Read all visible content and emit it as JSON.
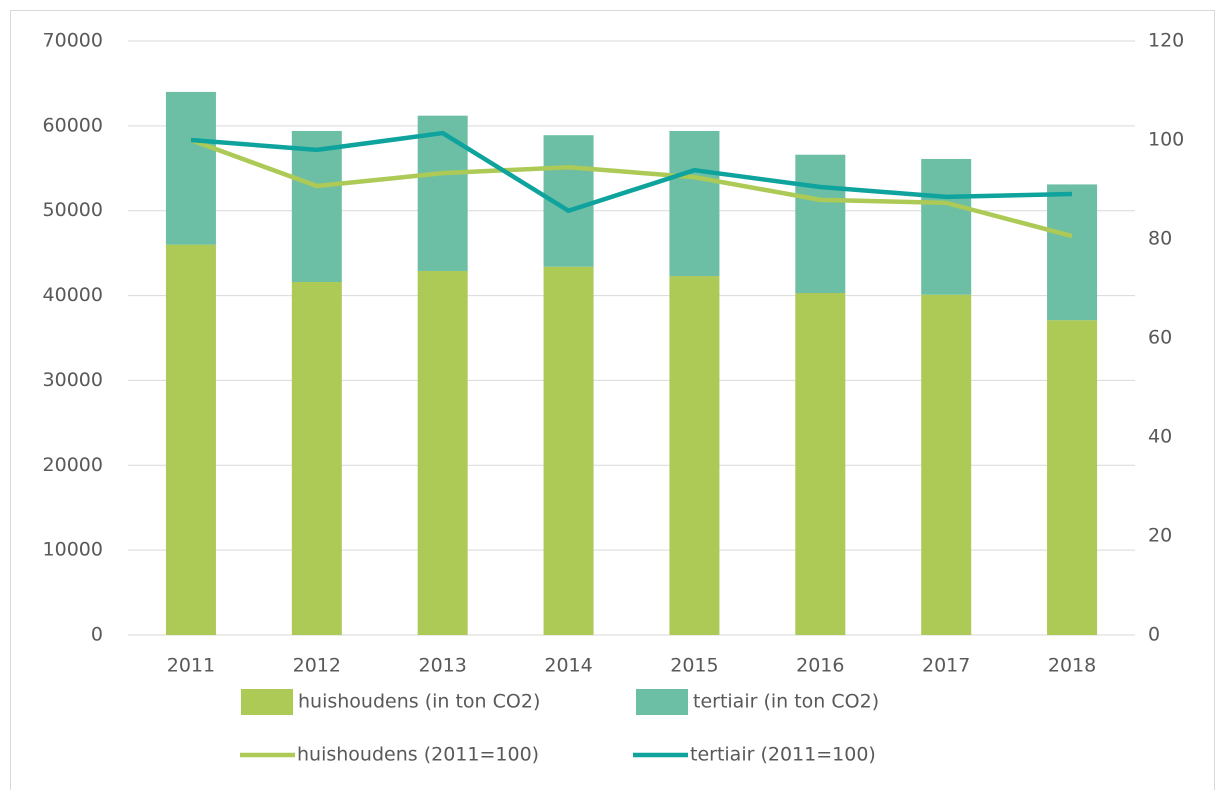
{
  "chart_data": {
    "type": "bar",
    "categories": [
      "2011",
      "2012",
      "2013",
      "2014",
      "2015",
      "2016",
      "2017",
      "2018"
    ],
    "series": [
      {
        "name": "huishoudens (in ton CO2)",
        "type": "bar",
        "color": "#adc956",
        "values": [
          46000,
          41600,
          42900,
          43400,
          42300,
          40300,
          40100,
          37100
        ]
      },
      {
        "name": "tertiair (in ton CO2)",
        "type": "bar",
        "color": "#6cbfa5",
        "values": [
          18000,
          17800,
          18300,
          15500,
          17100,
          16300,
          16000,
          16000
        ]
      },
      {
        "name": "huishoudens (2011=100)",
        "type": "line",
        "axis": "y2",
        "color": "#adc956",
        "values": [
          100,
          90.7,
          93.3,
          94.5,
          92.5,
          87.9,
          87.3,
          80.6
        ]
      },
      {
        "name": "tertiair (2011=100)",
        "type": "line",
        "axis": "y2",
        "color": "#0fa39d",
        "values": [
          100,
          98,
          101.4,
          85.7,
          93.9,
          90.5,
          88.5,
          89.1
        ]
      }
    ],
    "stacked": true,
    "ylim": [
      0,
      70000
    ],
    "yticks": [
      0,
      10000,
      20000,
      30000,
      40000,
      50000,
      60000,
      70000
    ],
    "y2lim": [
      0,
      120
    ],
    "y2ticks": [
      0,
      20,
      40,
      60,
      80,
      100,
      120
    ],
    "grid": true,
    "legend": "bottom"
  }
}
